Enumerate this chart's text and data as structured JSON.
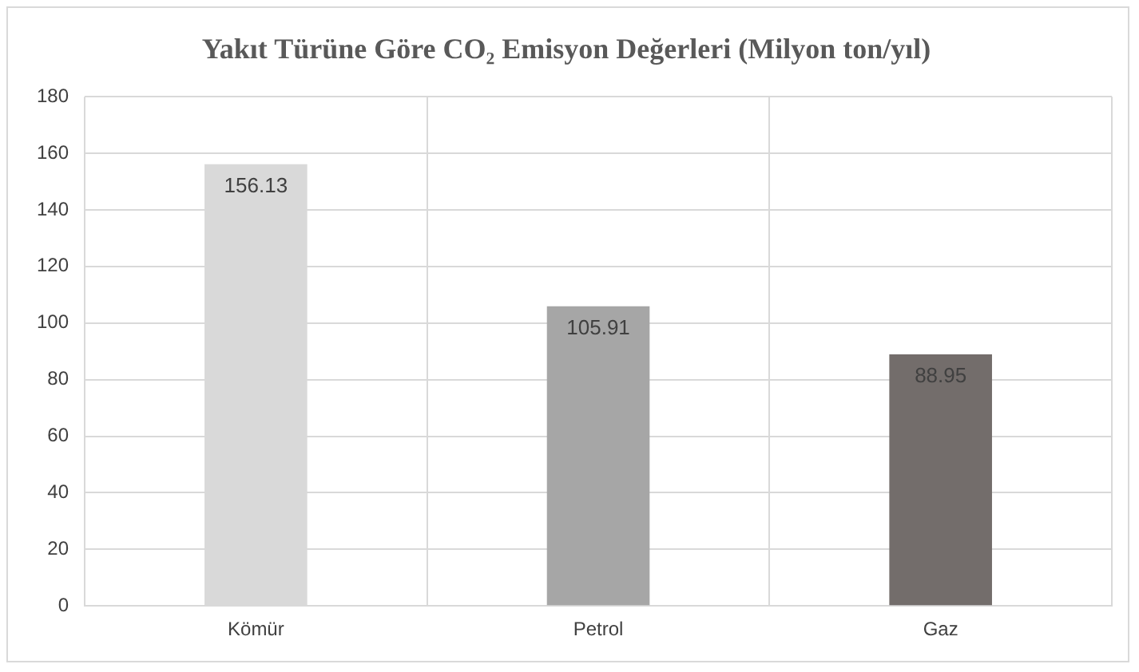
{
  "chart_data": {
    "type": "bar",
    "title": "Yakıt Türüne Göre CO₂ Emisyon Değerleri (Milyon ton/yıl)",
    "categories": [
      "Kömür",
      "Petrol",
      "Gaz"
    ],
    "values": [
      156.13,
      105.91,
      88.95
    ],
    "colors": [
      "#d9d9d9",
      "#a6a6a6",
      "#736d6b"
    ],
    "ylim": [
      0,
      180
    ],
    "yticks": [
      0,
      20,
      40,
      60,
      80,
      100,
      120,
      140,
      160,
      180
    ],
    "grid": true,
    "data_labels": true
  }
}
